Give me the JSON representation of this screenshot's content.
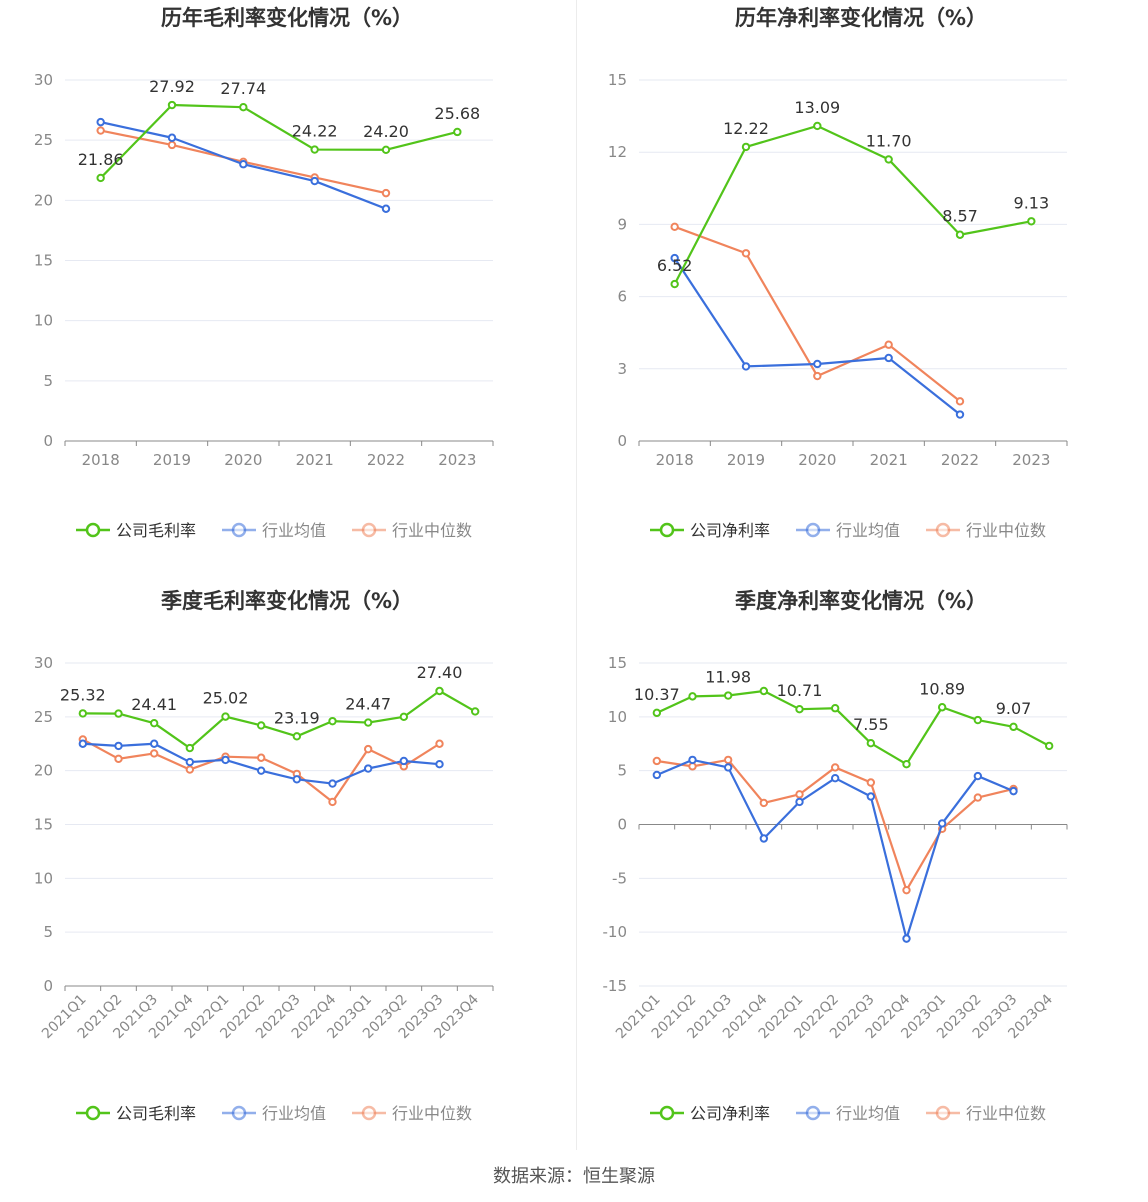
{
  "source_text": "数据来源：恒生聚源",
  "chart_data": [
    {
      "type": "line",
      "title": "历年毛利率变化情况（%）",
      "categories": [
        "2018",
        "2019",
        "2020",
        "2021",
        "2022",
        "2023"
      ],
      "ylim": [
        0,
        30
      ],
      "yticks": [
        0,
        5,
        10,
        15,
        20,
        25,
        30
      ],
      "ytick_labels": [
        "0",
        "5",
        "10",
        "15",
        "20",
        "25",
        "30"
      ],
      "rotate_x": false,
      "series": [
        {
          "name": "公司毛利率",
          "color": "#52c41a",
          "values": [
            21.86,
            27.92,
            27.74,
            24.22,
            24.2,
            25.68
          ],
          "labels": [
            "21.86",
            "27.92",
            "27.74",
            "24.22",
            "24.20",
            "25.68"
          ]
        },
        {
          "name": "行业均值",
          "color": "#3a6fdc",
          "values": [
            26.5,
            25.2,
            23.0,
            21.6,
            19.3,
            null
          ]
        },
        {
          "name": "行业中位数",
          "color": "#f0845c",
          "values": [
            25.8,
            24.6,
            23.2,
            21.9,
            20.6,
            null
          ]
        }
      ]
    },
    {
      "type": "line",
      "title": "历年净利率变化情况（%）",
      "categories": [
        "2018",
        "2019",
        "2020",
        "2021",
        "2022",
        "2023"
      ],
      "ylim": [
        0,
        15
      ],
      "yticks": [
        0,
        3,
        6,
        9,
        12,
        15
      ],
      "ytick_labels": [
        "0",
        "3",
        "6",
        "9",
        "12",
        "15"
      ],
      "rotate_x": false,
      "series": [
        {
          "name": "公司净利率",
          "color": "#52c41a",
          "values": [
            6.52,
            12.22,
            13.09,
            11.7,
            8.57,
            9.13
          ],
          "labels": [
            "6.52",
            "12.22",
            "13.09",
            "11.70",
            "8.57",
            "9.13"
          ]
        },
        {
          "name": "行业均值",
          "color": "#3a6fdc",
          "values": [
            7.6,
            3.1,
            3.2,
            3.45,
            1.1,
            null
          ]
        },
        {
          "name": "行业中位数",
          "color": "#f0845c",
          "values": [
            8.9,
            7.8,
            2.7,
            4.0,
            1.65,
            null
          ]
        }
      ]
    },
    {
      "type": "line",
      "title": "季度毛利率变化情况（%）",
      "categories": [
        "2021Q1",
        "2021Q2",
        "2021Q3",
        "2021Q4",
        "2022Q1",
        "2022Q2",
        "2022Q3",
        "2022Q4",
        "2023Q1",
        "2023Q2",
        "2023Q3",
        "2023Q4"
      ],
      "ylim": [
        0,
        30
      ],
      "yticks": [
        0,
        5,
        10,
        15,
        20,
        25,
        30
      ],
      "ytick_labels": [
        "0",
        "5",
        "10",
        "15",
        "20",
        "25",
        "30"
      ],
      "rotate_x": true,
      "series": [
        {
          "name": "公司毛利率",
          "color": "#52c41a",
          "values": [
            25.32,
            25.3,
            24.41,
            22.1,
            25.02,
            24.2,
            23.19,
            24.6,
            24.47,
            25.0,
            27.4,
            25.5
          ],
          "labels": [
            "25.32",
            "",
            "24.41",
            "",
            "25.02",
            "",
            "23.19",
            "",
            "24.47",
            "",
            "27.40",
            ""
          ]
        },
        {
          "name": "行业均值",
          "color": "#3a6fdc",
          "values": [
            22.5,
            22.3,
            22.5,
            20.8,
            21.0,
            20.0,
            19.2,
            18.8,
            20.2,
            20.9,
            20.6,
            null
          ]
        },
        {
          "name": "行业中位数",
          "color": "#f0845c",
          "values": [
            22.9,
            21.1,
            21.6,
            20.1,
            21.3,
            21.2,
            19.7,
            17.1,
            22.0,
            20.4,
            22.5,
            null
          ]
        }
      ]
    },
    {
      "type": "line",
      "title": "季度净利率变化情况（%）",
      "categories": [
        "2021Q1",
        "2021Q2",
        "2021Q3",
        "2021Q4",
        "2022Q1",
        "2022Q2",
        "2022Q3",
        "2022Q4",
        "2023Q1",
        "2023Q2",
        "2023Q3",
        "2023Q4"
      ],
      "ylim": [
        -15,
        15
      ],
      "yticks": [
        -15,
        -10,
        -5,
        0,
        5,
        10,
        15
      ],
      "ytick_labels": [
        "-15",
        "-10",
        "-5",
        "0",
        "5",
        "10",
        "15"
      ],
      "rotate_x": true,
      "series": [
        {
          "name": "公司净利率",
          "color": "#52c41a",
          "values": [
            10.37,
            11.9,
            11.98,
            12.4,
            10.71,
            10.8,
            7.55,
            5.6,
            10.89,
            9.7,
            9.07,
            7.3
          ],
          "labels": [
            "10.37",
            "",
            "11.98",
            "",
            "10.71",
            "",
            "7.55",
            "",
            "10.89",
            "",
            "9.07",
            ""
          ]
        },
        {
          "name": "行业均值",
          "color": "#3a6fdc",
          "values": [
            4.6,
            6.0,
            5.3,
            -1.3,
            2.1,
            4.3,
            2.6,
            -10.6,
            0.1,
            4.5,
            3.1,
            null
          ]
        },
        {
          "name": "行业中位数",
          "color": "#f0845c",
          "values": [
            5.9,
            5.4,
            6.0,
            2.0,
            2.8,
            5.3,
            3.9,
            -6.1,
            -0.4,
            2.5,
            3.3,
            null
          ]
        }
      ]
    }
  ]
}
